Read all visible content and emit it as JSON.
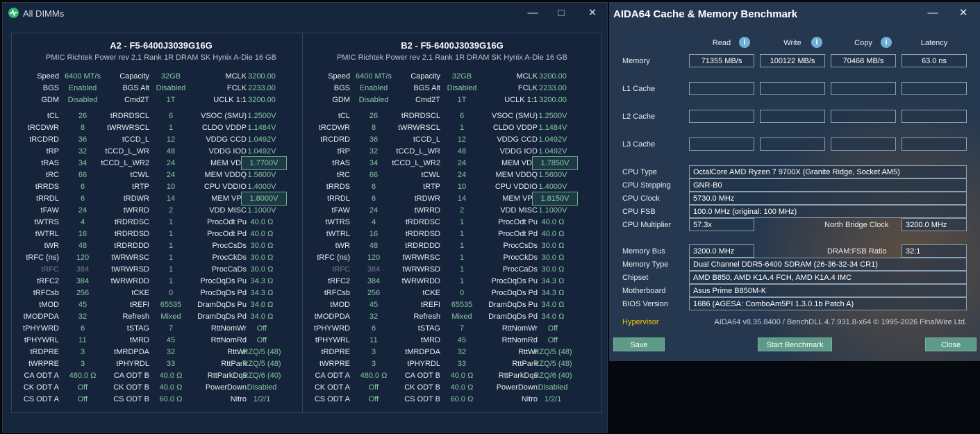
{
  "zt": {
    "title": "All DIMMs",
    "panels": [
      {
        "header1": "A2  -  F5-6400J3039G16G",
        "header2": "PMIC Richtek Power rev 2.1    Rank 1R    DRAM SK Hynix A-Die    16 GB",
        "rows": [
          [
            "Speed",
            "6400 MT/s",
            "Capacity",
            "32GB",
            "MCLK",
            "3200.00"
          ],
          [
            "BGS",
            "Enabled",
            "BGS Alt",
            "Disabled",
            "FCLK",
            "2233.00"
          ],
          [
            "GDM",
            "Disabled",
            "Cmd2T",
            "1T",
            "UCLK  1:1",
            "3200.00"
          ],
          [
            "tCL",
            "26",
            "tRDRDSCL",
            "6",
            "VSOC (SMU)",
            "1.2500V"
          ],
          [
            "tRCDWR",
            "8",
            "tWRWRSCL",
            "1",
            "CLDO VDDP",
            "1.1484V"
          ],
          [
            "tRCDRD",
            "36",
            "tCCD_L",
            "12",
            "VDDG CCD",
            "1.0492V"
          ],
          [
            "tRP",
            "32",
            "tCCD_L_WR",
            "48",
            "VDDG IOD",
            "1.0492V"
          ],
          [
            "tRAS",
            "34",
            "tCCD_L_WR2",
            "24",
            "MEM VDD",
            "1.7700V"
          ],
          [
            "tRC",
            "66",
            "tCWL",
            "24",
            "MEM VDDQ",
            "1.5600V"
          ],
          [
            "tRRDS",
            "6",
            "tRTP",
            "10",
            "CPU VDDIO",
            "1.4000V"
          ],
          [
            "tRRDL",
            "6",
            "tRDWR",
            "14",
            "MEM VPP",
            "1.8000V"
          ],
          [
            "tFAW",
            "24",
            "tWRRD",
            "2",
            "VDD MISC",
            "1.1000V"
          ],
          [
            "tWTRS",
            "4",
            "tRDRDSC",
            "1",
            "ProcOdt Pu",
            "40.0 Ω"
          ],
          [
            "tWTRL",
            "16",
            "tRDRDSD",
            "1",
            "ProcOdt Pd",
            "40.0 Ω"
          ],
          [
            "tWR",
            "48",
            "tRDRDDD",
            "1",
            "ProcCsDs",
            "30.0 Ω"
          ],
          [
            "tRFC (ns)",
            "120",
            "tWRWRSC",
            "1",
            "ProcCkDs",
            "30.0 Ω"
          ],
          [
            "tRFC",
            "384",
            "tWRWRSD",
            "1",
            "ProcCaDs",
            "30.0 Ω"
          ],
          [
            "tRFC2",
            "384",
            "tWRWRDD",
            "1",
            "ProcDqDs Pu",
            "34.3 Ω"
          ],
          [
            "tRFCsb",
            "256",
            "tCKE",
            "0",
            "ProcDqDs Pd",
            "34.3 Ω"
          ],
          [
            "tMOD",
            "45",
            "tREFI",
            "65535",
            "DramDqDs Pu",
            "34.0 Ω"
          ],
          [
            "tMODPDA",
            "32",
            "Refresh",
            "Mixed",
            "DramDqDs Pd",
            "34.0 Ω"
          ],
          [
            "tPHYWRD",
            "6",
            "tSTAG",
            "7",
            "RttNomWr",
            "Off"
          ],
          [
            "tPHYWRL",
            "11",
            "tMRD",
            "45",
            "RttNomRd",
            "Off"
          ],
          [
            "tRDPRE",
            "3",
            "tMRDPDA",
            "32",
            "RttWr",
            "RZQ/5 (48)"
          ],
          [
            "tWRPRE",
            "3",
            "tPHYRDL",
            "33",
            "RttPark",
            "RZQ/5 (48)"
          ],
          [
            "CA ODT A",
            "480.0 Ω",
            "CA ODT B",
            "40.0 Ω",
            "RttParkDqs",
            "RZQ/6 (40)"
          ],
          [
            "CK ODT A",
            "Off",
            "CK ODT B",
            "40.0 Ω",
            "PowerDown",
            "Disabled"
          ],
          [
            "CS ODT A",
            "Off",
            "CS ODT B",
            "60.0 Ω",
            "Nitro",
            "1/2/1"
          ]
        ]
      },
      {
        "header1": "B2  -  F5-6400J3039G16G",
        "header2": "PMIC Richtek Power rev 2.1    Rank 1R    DRAM SK Hynix A-Die    16 GB",
        "rows": [
          [
            "Speed",
            "6400 MT/s",
            "Capacity",
            "32GB",
            "MCLK",
            "3200.00"
          ],
          [
            "BGS",
            "Enabled",
            "BGS Alt",
            "Disabled",
            "FCLK",
            "2233.00"
          ],
          [
            "GDM",
            "Disabled",
            "Cmd2T",
            "1T",
            "UCLK  1:1",
            "3200.00"
          ],
          [
            "tCL",
            "26",
            "tRDRDSCL",
            "6",
            "VSOC (SMU)",
            "1.2500V"
          ],
          [
            "tRCDWR",
            "8",
            "tWRWRSCL",
            "1",
            "CLDO VDDP",
            "1.1484V"
          ],
          [
            "tRCDRD",
            "36",
            "tCCD_L",
            "12",
            "VDDG CCD",
            "1.0492V"
          ],
          [
            "tRP",
            "32",
            "tCCD_L_WR",
            "48",
            "VDDG IOD",
            "1.0492V"
          ],
          [
            "tRAS",
            "34",
            "tCCD_L_WR2",
            "24",
            "MEM VDD",
            "1.7850V"
          ],
          [
            "tRC",
            "66",
            "tCWL",
            "24",
            "MEM VDDQ",
            "1.5600V"
          ],
          [
            "tRRDS",
            "6",
            "tRTP",
            "10",
            "CPU VDDIO",
            "1.4000V"
          ],
          [
            "tRRDL",
            "6",
            "tRDWR",
            "14",
            "MEM VPP",
            "1.8150V"
          ],
          [
            "tFAW",
            "24",
            "tWRRD",
            "2",
            "VDD MISC",
            "1.1000V"
          ],
          [
            "tWTRS",
            "4",
            "tRDRDSC",
            "1",
            "ProcOdt Pu",
            "40.0 Ω"
          ],
          [
            "tWTRL",
            "16",
            "tRDRDSD",
            "1",
            "ProcOdt Pd",
            "40.0 Ω"
          ],
          [
            "tWR",
            "48",
            "tRDRDDD",
            "1",
            "ProcCsDs",
            "30.0 Ω"
          ],
          [
            "tRFC (ns)",
            "120",
            "tWRWRSC",
            "1",
            "ProcCkDs",
            "30.0 Ω"
          ],
          [
            "tRFC",
            "384",
            "tWRWRSD",
            "1",
            "ProcCaDs",
            "30.0 Ω"
          ],
          [
            "tRFC2",
            "384",
            "tWRWRDD",
            "1",
            "ProcDqDs Pu",
            "34.3 Ω"
          ],
          [
            "tRFCsb",
            "256",
            "tCKE",
            "0",
            "ProcDqDs Pd",
            "34.3 Ω"
          ],
          [
            "tMOD",
            "45",
            "tREFI",
            "65535",
            "DramDqDs Pu",
            "34.0 Ω"
          ],
          [
            "tMODPDA",
            "32",
            "Refresh",
            "Mixed",
            "DramDqDs Pd",
            "34.0 Ω"
          ],
          [
            "tPHYWRD",
            "6",
            "tSTAG",
            "7",
            "RttNomWr",
            "Off"
          ],
          [
            "tPHYWRL",
            "11",
            "tMRD",
            "45",
            "RttNomRd",
            "Off"
          ],
          [
            "tRDPRE",
            "3",
            "tMRDPDA",
            "32",
            "RttWr",
            "RZQ/5 (48)"
          ],
          [
            "tWRPRE",
            "3",
            "tPHYRDL",
            "33",
            "RttPark",
            "RZQ/5 (48)"
          ],
          [
            "CA ODT A",
            "480.0 Ω",
            "CA ODT B",
            "40.0 Ω",
            "RttParkDqs",
            "RZQ/6 (40)"
          ],
          [
            "CK ODT A",
            "Off",
            "CK ODT B",
            "40.0 Ω",
            "PowerDown",
            "Disabled"
          ],
          [
            "CS ODT A",
            "Off",
            "CS ODT B",
            "60.0 Ω",
            "Nitro",
            "1/2/1"
          ]
        ]
      }
    ]
  },
  "aida": {
    "title": "AIDA64 Cache & Memory Benchmark",
    "columns": {
      "read": "Read",
      "write": "Write",
      "copy": "Copy",
      "latency": "Latency"
    },
    "rows": {
      "memory": {
        "label": "Memory",
        "read": "71355 MB/s",
        "write": "100122 MB/s",
        "copy": "70468 MB/s",
        "latency": "63.0 ns"
      },
      "l1": {
        "label": "L1 Cache"
      },
      "l2": {
        "label": "L2 Cache"
      },
      "l3": {
        "label": "L3 Cache"
      }
    },
    "info": {
      "cpu_type_label": "CPU Type",
      "cpu_type": "OctalCore AMD Ryzen 7 9700X  (Granite Ridge, Socket AM5)",
      "cpu_stepping_label": "CPU Stepping",
      "cpu_stepping": "GNR-B0",
      "cpu_clock_label": "CPU Clock",
      "cpu_clock": "5730.0 MHz",
      "cpu_fsb_label": "CPU FSB",
      "cpu_fsb": "100.0 MHz  (original: 100 MHz)",
      "cpu_mult_label": "CPU Multiplier",
      "cpu_mult": "57.3x",
      "nb_clock_label": "North Bridge Clock",
      "nb_clock": "3200.0 MHz",
      "mem_bus_label": "Memory Bus",
      "mem_bus": "3200.0 MHz",
      "dram_fsb_label": "DRAM:FSB Ratio",
      "dram_fsb": "32:1",
      "mem_type_label": "Memory Type",
      "mem_type": "Dual Channel DDR5-6400 SDRAM  (26-36-32-34 CR1)",
      "chipset_label": "Chipset",
      "chipset": "AMD B850, AMD K1A.4 FCH, AMD K1A.4 IMC",
      "mobo_label": "Motherboard",
      "mobo": "Asus Prime B850M-K",
      "bios_label": "BIOS Version",
      "bios": "1686  (AGESA: ComboAm5PI 1.3.0.1b Patch A)"
    },
    "hypervisor": "Hypervisor",
    "version": "AIDA64 v8.35.8400 / BenchDLL 4.7.931.8-x64 © 1995-2026 FinalWire Ltd.",
    "buttons": {
      "save": "Save",
      "start": "Start Benchmark",
      "close": "Close"
    }
  }
}
